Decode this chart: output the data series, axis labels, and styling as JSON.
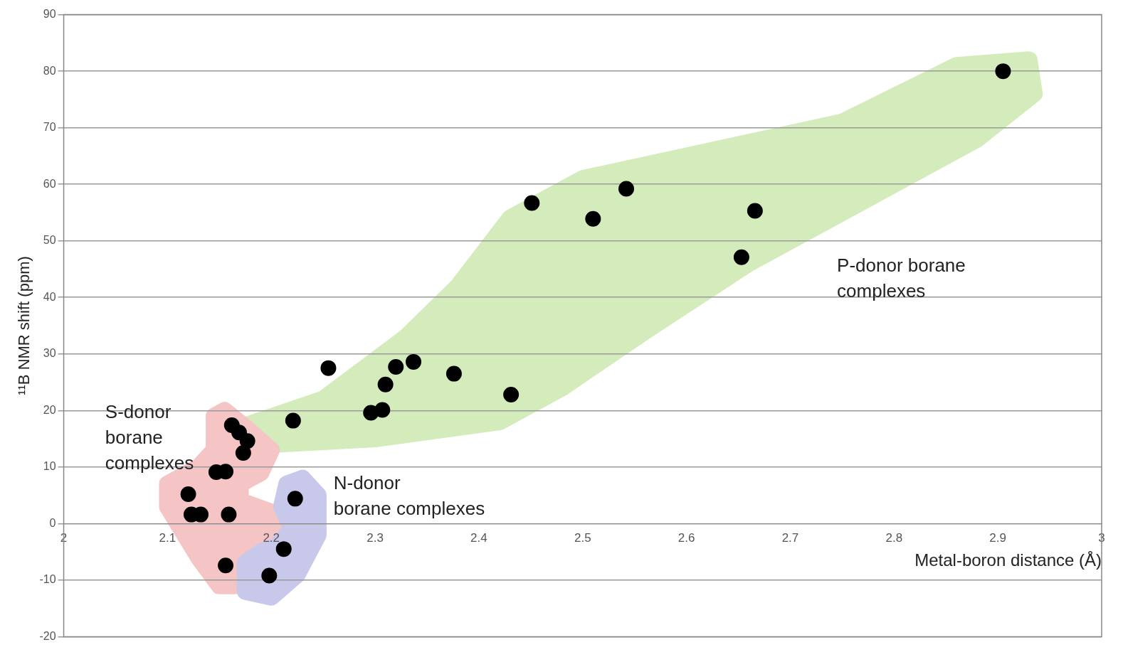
{
  "chart_data": {
    "type": "scatter",
    "ylabel": "¹¹B NMR shift (ppm)",
    "xlabel": "Metal-boron distance (Å)",
    "xlim": [
      2,
      3
    ],
    "xticks": [
      2,
      2.1,
      2.2,
      2.3,
      2.4,
      2.5,
      2.6,
      2.7,
      2.8,
      2.9,
      3
    ],
    "ylim": [
      -20,
      90
    ],
    "yticks": [
      -20,
      -10,
      0,
      10,
      20,
      30,
      40,
      50,
      60,
      70,
      80,
      90
    ],
    "grid": "y",
    "legend": false,
    "marker": "circle",
    "series": [
      {
        "color": "#000000",
        "x": [
          2.905,
          2.451,
          2.542,
          2.51,
          2.666,
          2.653,
          2.255,
          2.32,
          2.337,
          2.376,
          2.31,
          2.296,
          2.307,
          2.431,
          2.221,
          2.162,
          2.169,
          2.177,
          2.173,
          2.147,
          2.156,
          2.12,
          2.123,
          2.132,
          2.159,
          2.156,
          2.212,
          2.198,
          2.223
        ],
        "values": [
          80,
          56.7,
          59.2,
          53.9,
          55.3,
          47.1,
          27.5,
          27.7,
          28.6,
          26.5,
          24.6,
          19.6,
          20.1,
          22.8,
          18.2,
          17.4,
          16.1,
          14.6,
          12.5,
          9.1,
          9.2,
          5.2,
          1.6,
          1.6,
          1.6,
          -7.4,
          -4.5,
          -9.2,
          4.4
        ]
      }
    ],
    "annotations": [
      "P-donor borane\ncomplexes",
      "S-donor\nborane\ncomplexes",
      "N-donor\nborane complexes"
    ]
  }
}
